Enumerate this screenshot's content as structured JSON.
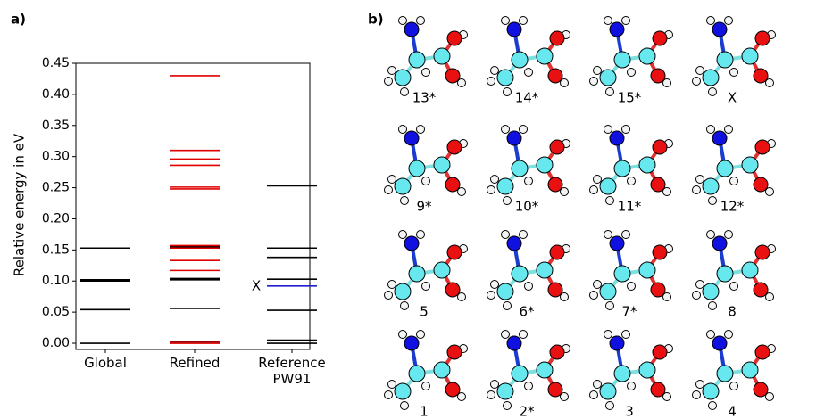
{
  "chart_data": {
    "type": "levels",
    "panel_label": "a)",
    "ylabel": "Relative energy in eV",
    "categories": [
      "Global",
      "Refined",
      "Reference\nPW91"
    ],
    "series": [
      {
        "color": "#000000",
        "values": [
          [
            0.0,
            0.054,
            0.1,
            0.102,
            0.153
          ],
          [
            0.002,
            0.056,
            0.102,
            0.104,
            0.155
          ],
          [
            0.0,
            0.005,
            0.053,
            0.103,
            0.138,
            0.153,
            0.253
          ]
        ]
      },
      {
        "color": "#e00000",
        "values": [
          [],
          [
            0.0,
            0.003,
            0.117,
            0.133,
            0.153,
            0.157,
            0.248,
            0.251,
            0.286,
            0.296,
            0.31,
            0.43
          ],
          []
        ]
      },
      {
        "color": "#1f1fd0",
        "values": [
          [],
          [],
          [
            0.092
          ]
        ]
      }
    ],
    "annotations": [
      {
        "text": "X",
        "y": 0.092
      }
    ],
    "ylim": [
      -0.01,
      0.45
    ],
    "yticks": [
      {
        "value": 0,
        "label": "0.00"
      },
      {
        "value": 0.05,
        "label": "0.05"
      },
      {
        "value": 0.1,
        "label": "0.10"
      },
      {
        "value": 0.15,
        "label": "0.15"
      },
      {
        "value": 0.2,
        "label": "0.20"
      },
      {
        "value": 0.25,
        "label": "0.25"
      },
      {
        "value": 0.3,
        "label": "0.30"
      },
      {
        "value": 0.35,
        "label": "0.35"
      },
      {
        "value": 0.4,
        "label": "0.40"
      },
      {
        "value": 0.45,
        "label": "0.45"
      }
    ]
  },
  "panel_b": {
    "label": "b)",
    "structures": [
      [
        "13*",
        "14*",
        "15*",
        "X"
      ],
      [
        "9*",
        "10*",
        "11*",
        "12*"
      ],
      [
        "5",
        "6*",
        "7*",
        "8"
      ],
      [
        "1",
        "2*",
        "3",
        "4"
      ]
    ]
  }
}
